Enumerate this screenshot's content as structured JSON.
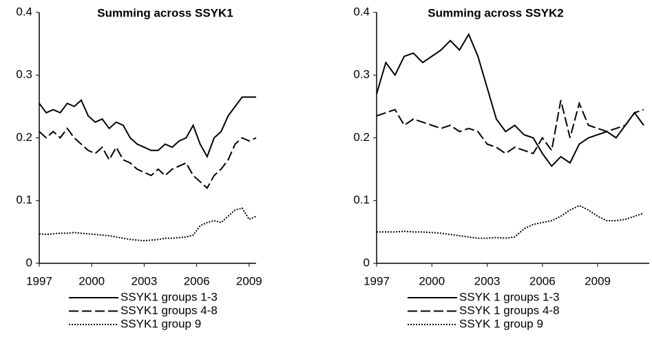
{
  "chart_data": [
    {
      "type": "line",
      "title": "Summing across SSYK1",
      "x": [
        1997,
        1997.4,
        1997.8,
        1998.2,
        1998.6,
        1999,
        1999.4,
        1999.8,
        2000.2,
        2000.6,
        2001,
        2001.4,
        2001.8,
        2002.2,
        2002.6,
        2003,
        2003.4,
        2003.8,
        2004.2,
        2004.6,
        2005,
        2005.4,
        2005.8,
        2006.2,
        2006.6,
        2007,
        2007.4,
        2007.8,
        2008.2,
        2008.6,
        2009,
        2009.4
      ],
      "series": [
        {
          "name": "SSYK1 groups 1-3",
          "color": "#000000",
          "dash": "solid",
          "values": [
            0.255,
            0.24,
            0.245,
            0.24,
            0.255,
            0.25,
            0.26,
            0.235,
            0.225,
            0.23,
            0.215,
            0.225,
            0.22,
            0.2,
            0.19,
            0.185,
            0.18,
            0.18,
            0.19,
            0.185,
            0.195,
            0.2,
            0.22,
            0.19,
            0.17,
            0.2,
            0.21,
            0.235,
            0.25,
            0.265,
            0.265,
            0.265
          ]
        },
        {
          "name": "SSYK1 groups 4-8",
          "color": "#000000",
          "dash": "dashed",
          "values": [
            0.21,
            0.2,
            0.21,
            0.2,
            0.215,
            0.2,
            0.19,
            0.18,
            0.175,
            0.185,
            0.165,
            0.185,
            0.165,
            0.16,
            0.15,
            0.145,
            0.14,
            0.15,
            0.14,
            0.15,
            0.155,
            0.16,
            0.14,
            0.13,
            0.12,
            0.14,
            0.15,
            0.165,
            0.19,
            0.2,
            0.195,
            0.2
          ]
        },
        {
          "name": "SSYK1 group 9",
          "color": "#000000",
          "dash": "dotted",
          "values": [
            0.047,
            0.046,
            0.047,
            0.048,
            0.048,
            0.049,
            0.048,
            0.047,
            0.046,
            0.045,
            0.044,
            0.042,
            0.04,
            0.038,
            0.037,
            0.036,
            0.037,
            0.038,
            0.04,
            0.04,
            0.041,
            0.042,
            0.045,
            0.06,
            0.065,
            0.068,
            0.065,
            0.075,
            0.085,
            0.088,
            0.07,
            0.075
          ]
        }
      ],
      "xlim": [
        1997,
        2009.4
      ],
      "xticks": [
        1997,
        2000,
        2003,
        2006,
        2009
      ],
      "ylim": [
        0,
        0.4
      ],
      "yticks": [
        0,
        0.1,
        0.2,
        0.3,
        0.4
      ],
      "grid": false
    },
    {
      "type": "line",
      "title": "Summing across SSYK2",
      "x": [
        1997,
        1997.5,
        1998,
        1998.5,
        1999,
        1999.5,
        2000,
        2000.5,
        2001,
        2001.5,
        2002,
        2002.5,
        2003,
        2003.5,
        2004,
        2004.5,
        2005,
        2005.5,
        2006,
        2006.5,
        2007,
        2007.5,
        2008,
        2008.5,
        2009,
        2009.5,
        2010,
        2010.5,
        2011,
        2011.5
      ],
      "series": [
        {
          "name": "SSYK 1 groups 1-3",
          "color": "#000000",
          "dash": "solid",
          "values": [
            0.27,
            0.32,
            0.3,
            0.33,
            0.335,
            0.32,
            0.33,
            0.34,
            0.355,
            0.34,
            0.365,
            0.33,
            0.28,
            0.23,
            0.21,
            0.22,
            0.205,
            0.2,
            0.175,
            0.155,
            0.17,
            0.16,
            0.19,
            0.2,
            0.205,
            0.21,
            0.2,
            0.22,
            0.24,
            0.22
          ]
        },
        {
          "name": "SSYK 1 groups 4-8",
          "color": "#000000",
          "dash": "dashed",
          "values": [
            0.235,
            0.24,
            0.245,
            0.22,
            0.23,
            0.225,
            0.22,
            0.215,
            0.22,
            0.21,
            0.215,
            0.21,
            0.19,
            0.185,
            0.175,
            0.185,
            0.18,
            0.175,
            0.2,
            0.18,
            0.26,
            0.2,
            0.255,
            0.22,
            0.215,
            0.21,
            0.215,
            0.22,
            0.24,
            0.245
          ]
        },
        {
          "name": "SSYK 1 group 9",
          "color": "#000000",
          "dash": "dotted",
          "values": [
            0.05,
            0.05,
            0.05,
            0.051,
            0.05,
            0.05,
            0.049,
            0.048,
            0.046,
            0.044,
            0.042,
            0.04,
            0.04,
            0.041,
            0.04,
            0.042,
            0.055,
            0.062,
            0.065,
            0.068,
            0.075,
            0.085,
            0.092,
            0.085,
            0.075,
            0.068,
            0.068,
            0.07,
            0.075,
            0.08
          ]
        }
      ],
      "xlim": [
        1997,
        2011.8
      ],
      "xticks": [
        1997,
        2000,
        2003,
        2006,
        2009
      ],
      "ylim": [
        0,
        0.4
      ],
      "yticks": [
        0,
        0.1,
        0.2,
        0.3,
        0.4
      ],
      "grid": false
    }
  ]
}
